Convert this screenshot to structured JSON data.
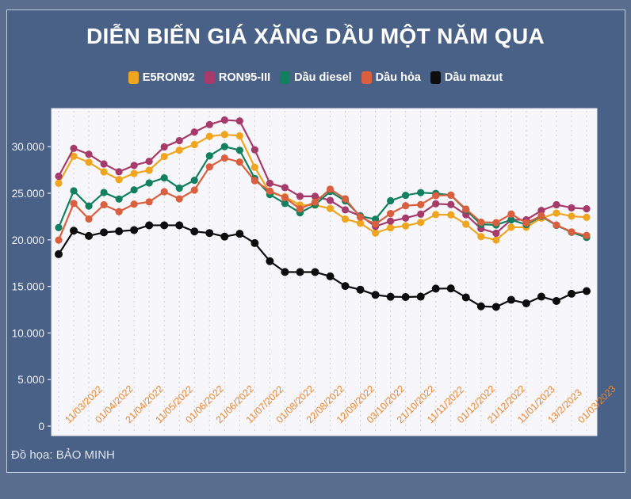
{
  "page": {
    "background": "#5A6E90",
    "card_background": "#4A6187"
  },
  "title": "DIỄN BIẾN GIÁ XĂNG DẦU MỘT NĂM QUA",
  "credit": "Đồ họa: BẢO MINH",
  "chart_data": {
    "type": "line",
    "title": "DIỄN BIẾN GIÁ XĂNG DẦU MỘT NĂM QUA",
    "unit": "VND",
    "plot_background": "#F7F7FB",
    "gridlines": {
      "vertical": "dashed",
      "horizontal": "none",
      "color": "#CFCFDA"
    },
    "y_axis": {
      "min": 0,
      "max": 34000,
      "tick_values": [
        0,
        5000,
        10000,
        15000,
        20000,
        25000,
        30000
      ],
      "tick_labels": [
        "0",
        "5.000",
        "10.000",
        "15.000",
        "20.000",
        "25.000",
        "30.000"
      ],
      "label_color": "#F2F4F8"
    },
    "x_axis": {
      "points_count": 36,
      "tick_labels": [
        "11/03/2022",
        "01/04/2022",
        "21/04/2022",
        "11/05/2022",
        "01/06/2022",
        "21/06/2022",
        "11/07/2022",
        "01/08/2022",
        "22/08/2022",
        "12/09/2022",
        "03/10/2022",
        "21/10/2022",
        "11/11/2022",
        "01/12/2022",
        "21/12/2022",
        "11/01/2023",
        "13/2/2023",
        "01/03/2023"
      ],
      "labels_under_every_second_point_starting_at_index": 1,
      "label_color": "#E8862D",
      "label_rotation_deg": -45
    },
    "legend": {
      "position": "top",
      "items": [
        {
          "label": "E5RON92",
          "color": "#F0A51E"
        },
        {
          "label": "RON95-III",
          "color": "#A63A6B"
        },
        {
          "label": "Dầu diesel",
          "color": "#12805E"
        },
        {
          "label": "Dầu hỏa",
          "color": "#D95F3E"
        },
        {
          "label": "Dầu mazut",
          "color": "#0D0D0D"
        }
      ]
    },
    "series": [
      {
        "name": "E5RON92",
        "color": "#F0A51E",
        "values": [
          26070,
          28980,
          28330,
          27300,
          26470,
          27130,
          27470,
          28950,
          29630,
          30230,
          31110,
          31300,
          31170,
          27790,
          25070,
          24630,
          23730,
          23730,
          23360,
          22230,
          21780,
          20730,
          21290,
          21500,
          21870,
          22710,
          22680,
          21680,
          20350,
          19980,
          21350,
          21350,
          22330,
          22870,
          22540,
          22420
        ]
      },
      {
        "name": "RON95-III",
        "color": "#A63A6B",
        "values": [
          26830,
          29820,
          29190,
          28150,
          27310,
          27990,
          28430,
          29980,
          30650,
          31570,
          32370,
          32870,
          32760,
          29670,
          26070,
          25610,
          24670,
          24670,
          24230,
          23220,
          22580,
          21440,
          22000,
          22340,
          22760,
          23870,
          23790,
          22700,
          21200,
          20710,
          22150,
          22150,
          23150,
          23770,
          23440,
          23330
        ]
      },
      {
        "name": "Dầu diesel",
        "color": "#12805E",
        "values": [
          21310,
          25260,
          23630,
          25080,
          24380,
          25360,
          26110,
          26650,
          25550,
          26390,
          29020,
          30010,
          29620,
          26590,
          24860,
          23910,
          22910,
          23760,
          25190,
          24180,
          22540,
          22210,
          24190,
          24780,
          25070,
          24980,
          24800,
          23210,
          21670,
          21600,
          22150,
          21630,
          22520,
          21560,
          20810,
          20260
        ]
      },
      {
        "name": "Dầu hỏa",
        "color": "#D95F3E",
        "values": [
          19970,
          23910,
          22240,
          23760,
          23020,
          23830,
          24080,
          25160,
          24400,
          25340,
          27830,
          28780,
          28350,
          26350,
          25240,
          24530,
          23320,
          24060,
          25440,
          24410,
          22440,
          21690,
          22820,
          23660,
          23780,
          24750,
          24800,
          23300,
          21900,
          21840,
          22770,
          21810,
          22580,
          21590,
          20850,
          20470
        ]
      },
      {
        "name": "Dầu mazut",
        "color": "#0D0D0D",
        "values": [
          18460,
          20980,
          20420,
          20800,
          20920,
          21050,
          21560,
          21560,
          21560,
          20900,
          20730,
          20350,
          20650,
          19650,
          17710,
          16550,
          16540,
          16540,
          16080,
          15040,
          14650,
          14090,
          13890,
          13860,
          13900,
          14760,
          14780,
          13820,
          12860,
          12800,
          13560,
          13180,
          13900,
          13440,
          14210,
          14500
        ]
      }
    ]
  }
}
